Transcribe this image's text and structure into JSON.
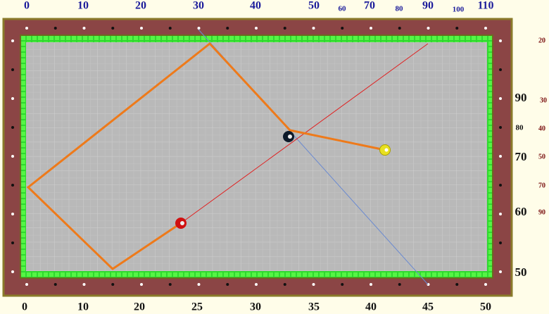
{
  "top_scale": [
    "0",
    "10",
    "20",
    "30",
    "40",
    "50",
    "60",
    "70",
    "80",
    "90",
    "100",
    "110"
  ],
  "bottom_scale": [
    "0",
    "10",
    "20",
    "25",
    "30",
    "35",
    "40",
    "45",
    "50"
  ],
  "right_scale": [
    "90",
    "80",
    "70",
    "60",
    "50"
  ],
  "right_scale_2": [
    "20",
    "30",
    "40",
    "50",
    "70",
    "90"
  ]
}
